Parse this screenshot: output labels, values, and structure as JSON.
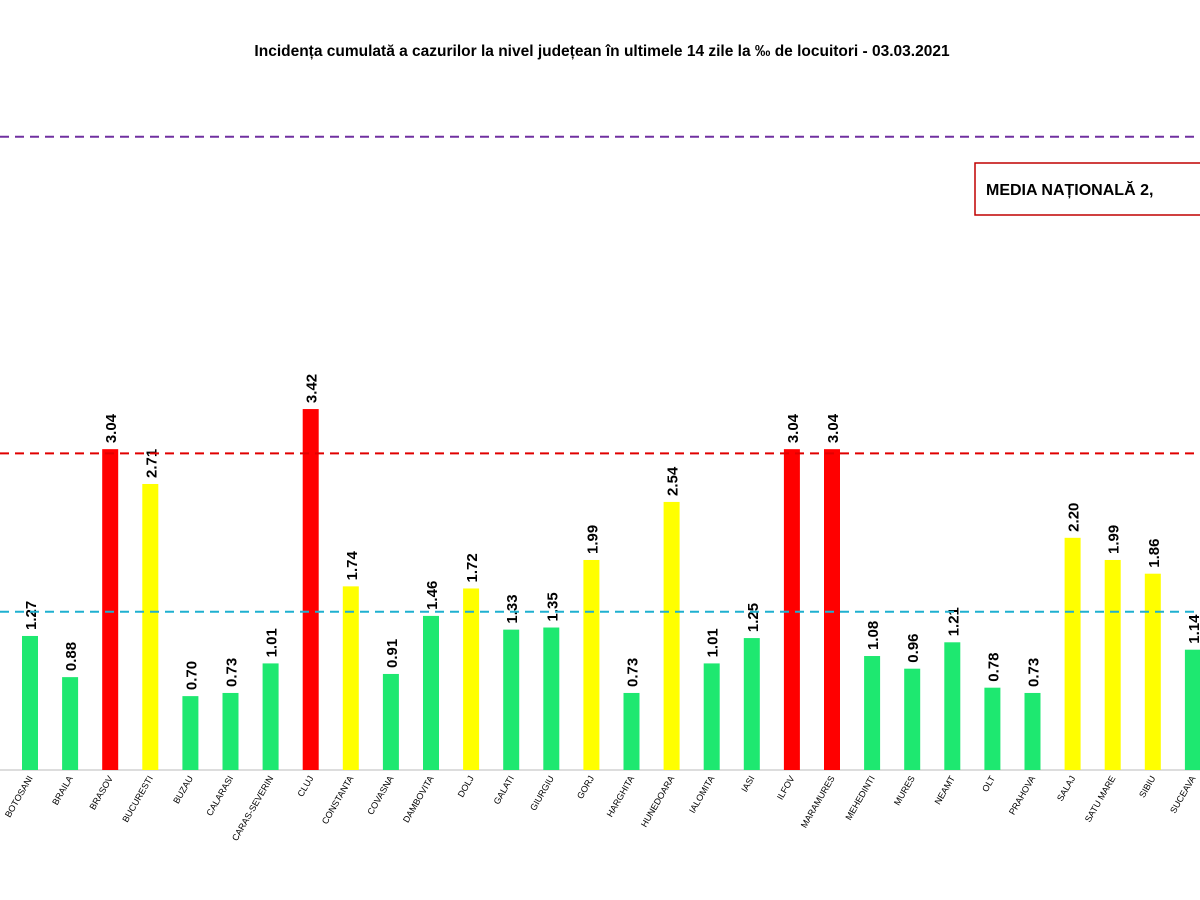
{
  "chart_data": {
    "type": "bar",
    "title": "Incidența cumulată a cazurilor la nivel județean în ultimele 14 zile la ‰ de locuitori - 03.03.2021",
    "categories": [
      "BOTOSANI",
      "BRAILA",
      "BRASOV",
      "BUCURESTI",
      "BUZAU",
      "CALARASI",
      "CARAS-SEVERIN",
      "CLUJ",
      "CONSTANTA",
      "COVASNA",
      "DAMBOVITA",
      "DOLJ",
      "GALATI",
      "GIURGIU",
      "GORJ",
      "HARGHITA",
      "HUNEDOARA",
      "IALOMITA",
      "IASI",
      "ILFOV",
      "MARAMURES",
      "MEHEDINTI",
      "MURES",
      "NEAMT",
      "OLT",
      "PRAHOVA",
      "SALAJ",
      "SATU MARE",
      "SIBIU",
      "SUCEAVA"
    ],
    "values": [
      1.27,
      0.88,
      3.04,
      2.71,
      0.7,
      0.73,
      1.01,
      3.42,
      1.74,
      0.91,
      1.46,
      1.72,
      1.33,
      1.35,
      1.99,
      0.73,
      2.54,
      1.01,
      1.25,
      3.04,
      3.04,
      1.08,
      0.96,
      1.21,
      0.78,
      0.73,
      2.2,
      1.99,
      1.86,
      1.14
    ],
    "value_labels": [
      "1.27",
      "0.88",
      "3.04",
      "2.71",
      "0.70",
      "0.73",
      "1.01",
      "3.42",
      "1.74",
      "0.91",
      "1.46",
      "1.72",
      "1.33",
      "1.35",
      "1.99",
      "0.73",
      "2.54",
      "1.01",
      "1.25",
      "3.04",
      "3.04",
      "1.08",
      "0.96",
      "1.21",
      "0.78",
      "0.73",
      "2.20",
      "1.99",
      "1.86",
      "1.14"
    ],
    "colors": [
      "#1ee870",
      "#1ee870",
      "#ff0000",
      "#ffff00",
      "#1ee870",
      "#1ee870",
      "#1ee870",
      "#ff0000",
      "#ffff00",
      "#1ee870",
      "#1ee870",
      "#ffff00",
      "#1ee870",
      "#1ee870",
      "#ffff00",
      "#1ee870",
      "#ffff00",
      "#1ee870",
      "#1ee870",
      "#ff0000",
      "#ff0000",
      "#1ee870",
      "#1ee870",
      "#1ee870",
      "#1ee870",
      "#1ee870",
      "#ffff00",
      "#ffff00",
      "#ffff00",
      "#1ee870"
    ],
    "ylim": [
      0,
      6.5
    ],
    "reference_lines": [
      {
        "value": 6,
        "color": "#7030a0"
      },
      {
        "value": 3,
        "color": "#e00000"
      },
      {
        "value": 1.5,
        "color": "#1fb0d0"
      }
    ],
    "annotation": "MEDIA NAȚIONALĂ 2,"
  }
}
